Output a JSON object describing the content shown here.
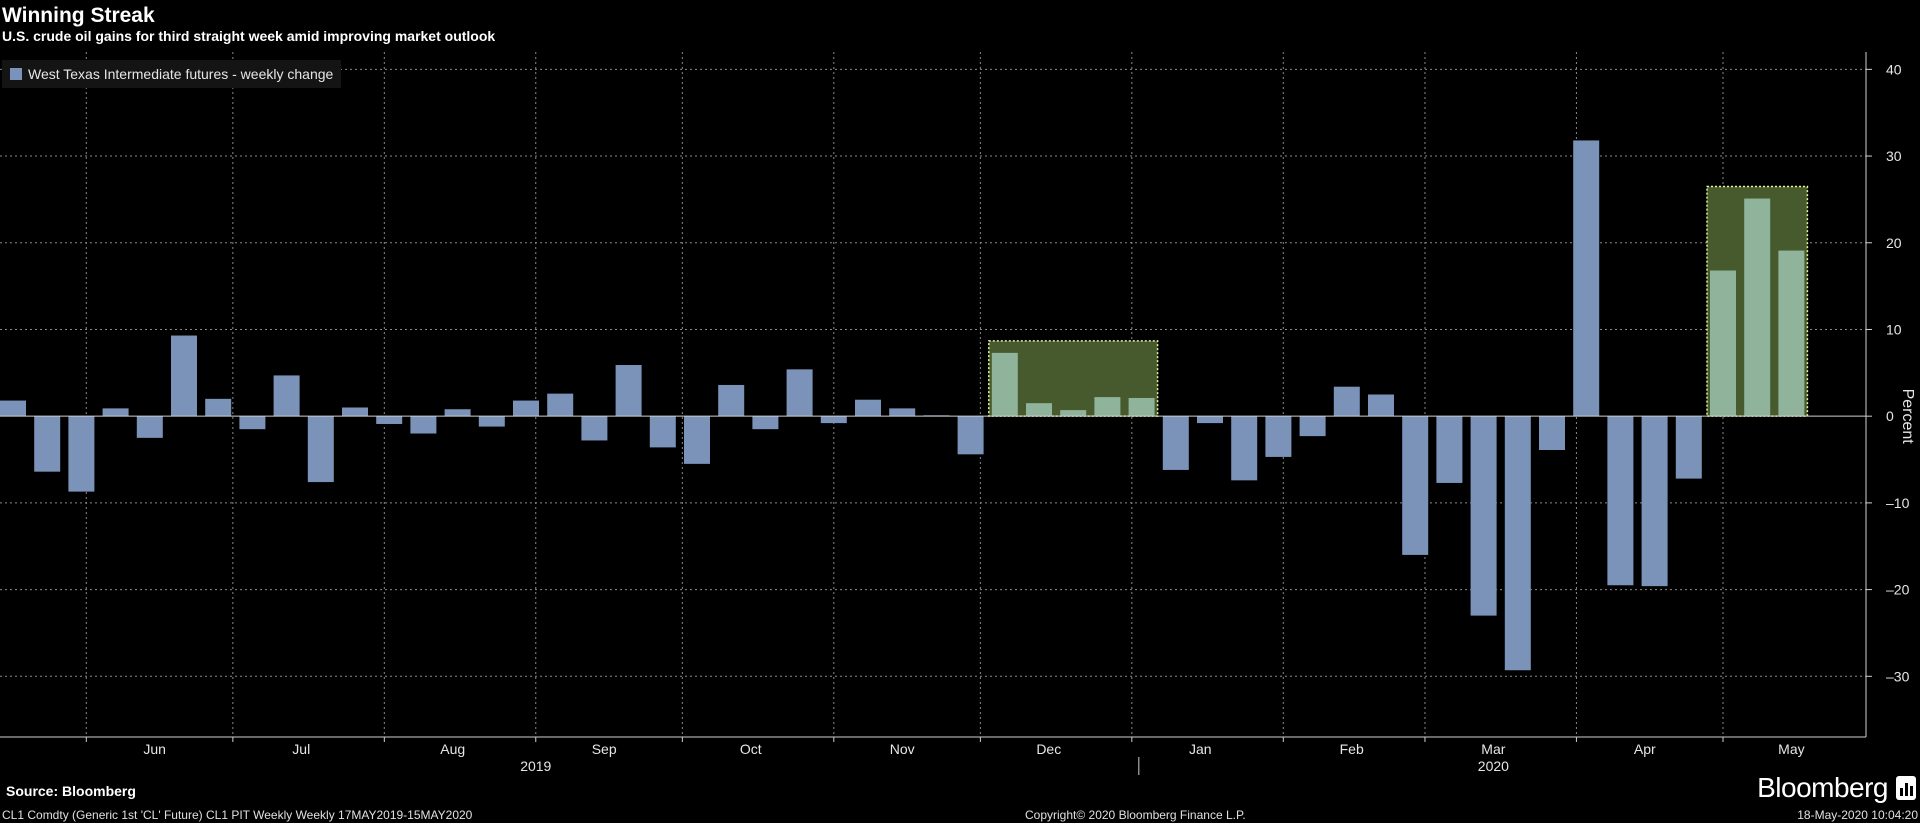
{
  "title": "Winning Streak",
  "subtitle": "U.S. crude oil gains for third straight week amid improving market outlook",
  "source": "Source: Bloomberg",
  "footer": {
    "left": "CL1 Comdty (Generic 1st 'CL' Future) CL1 PIT Weekly  Weekly 17MAY2019-15MAY2020",
    "center": "Copyright© 2020 Bloomberg Finance L.P.",
    "right": "18-May-2020 10:04:20"
  },
  "brand": "Bloomberg",
  "colors": {
    "bar": "#7b93b8",
    "highlight_bar": "#8fb39b",
    "highlight_box": "#475a2d",
    "highlight_border": "#e5f3a0",
    "grid": "#8a8a8a"
  },
  "chart_data": {
    "type": "bar",
    "legend": {
      "label": "West Texas Intermediate futures - weekly change",
      "position": "top-left"
    },
    "ylabel": "Percent",
    "ylim": [
      -37,
      42
    ],
    "yticks": [
      40,
      30,
      20,
      10,
      0,
      -10,
      -20,
      -30
    ],
    "y_axis_side": "right",
    "grid": true,
    "categories": [
      "2019-05-17",
      "2019-05-24",
      "2019-05-31",
      "2019-06-07",
      "2019-06-14",
      "2019-06-21",
      "2019-06-28",
      "2019-07-05",
      "2019-07-12",
      "2019-07-19",
      "2019-07-26",
      "2019-08-02",
      "2019-08-09",
      "2019-08-16",
      "2019-08-23",
      "2019-08-30",
      "2019-09-06",
      "2019-09-13",
      "2019-09-20",
      "2019-09-27",
      "2019-10-04",
      "2019-10-11",
      "2019-10-18",
      "2019-10-25",
      "2019-11-01",
      "2019-11-08",
      "2019-11-15",
      "2019-11-22",
      "2019-11-29",
      "2019-12-06",
      "2019-12-13",
      "2019-12-20",
      "2019-12-27",
      "2020-01-03",
      "2020-01-10",
      "2020-01-17",
      "2020-01-24",
      "2020-01-31",
      "2020-02-07",
      "2020-02-14",
      "2020-02-21",
      "2020-02-28",
      "2020-03-06",
      "2020-03-13",
      "2020-03-20",
      "2020-03-27",
      "2020-04-03",
      "2020-04-10",
      "2020-04-17",
      "2020-04-24",
      "2020-05-01",
      "2020-05-08",
      "2020-05-15"
    ],
    "values": [
      1.8,
      -6.4,
      -8.7,
      0.9,
      -2.5,
      9.3,
      2.0,
      -1.5,
      4.7,
      -7.6,
      1.0,
      -0.9,
      -2.0,
      0.8,
      -1.2,
      1.8,
      2.6,
      -2.8,
      5.9,
      -3.6,
      -5.5,
      3.6,
      -1.5,
      5.4,
      -0.8,
      1.9,
      0.9,
      0.1,
      -4.4,
      7.3,
      1.5,
      0.7,
      2.2,
      2.1,
      -6.2,
      -0.8,
      -7.4,
      -4.7,
      -2.3,
      3.4,
      2.5,
      -16.0,
      -7.7,
      -23.0,
      -29.3,
      -3.9,
      31.8,
      -19.5,
      -19.6,
      -7.2,
      16.8,
      25.1,
      19.1
    ],
    "highlight_ranges": [
      [
        29,
        33
      ],
      [
        50,
        52
      ]
    ],
    "month_labels": [
      {
        "date": "2019-06-15",
        "label": "Jun"
      },
      {
        "date": "2019-07-15",
        "label": "Jul"
      },
      {
        "date": "2019-08-15",
        "label": "Aug"
      },
      {
        "date": "2019-09-15",
        "label": "Sep"
      },
      {
        "date": "2019-10-15",
        "label": "Oct"
      },
      {
        "date": "2019-11-15",
        "label": "Nov"
      },
      {
        "date": "2019-12-15",
        "label": "Dec"
      },
      {
        "date": "2020-01-15",
        "label": "Jan"
      },
      {
        "date": "2020-02-15",
        "label": "Feb"
      },
      {
        "date": "2020-03-15",
        "label": "Mar"
      },
      {
        "date": "2020-04-15",
        "label": "Apr"
      },
      {
        "date": "2020-05-15",
        "label": "May"
      }
    ],
    "year_labels": [
      {
        "date": "2019-09-01",
        "label": "2019"
      },
      {
        "date": "2020-03-15",
        "label": "2020"
      }
    ],
    "month_boundaries": [
      "2019-06-01",
      "2019-07-01",
      "2019-08-01",
      "2019-09-01",
      "2019-10-01",
      "2019-11-01",
      "2019-12-01",
      "2020-01-01",
      "2020-02-01",
      "2020-03-01",
      "2020-04-01",
      "2020-05-01"
    ],
    "year_boundary": "2020-01-01"
  }
}
